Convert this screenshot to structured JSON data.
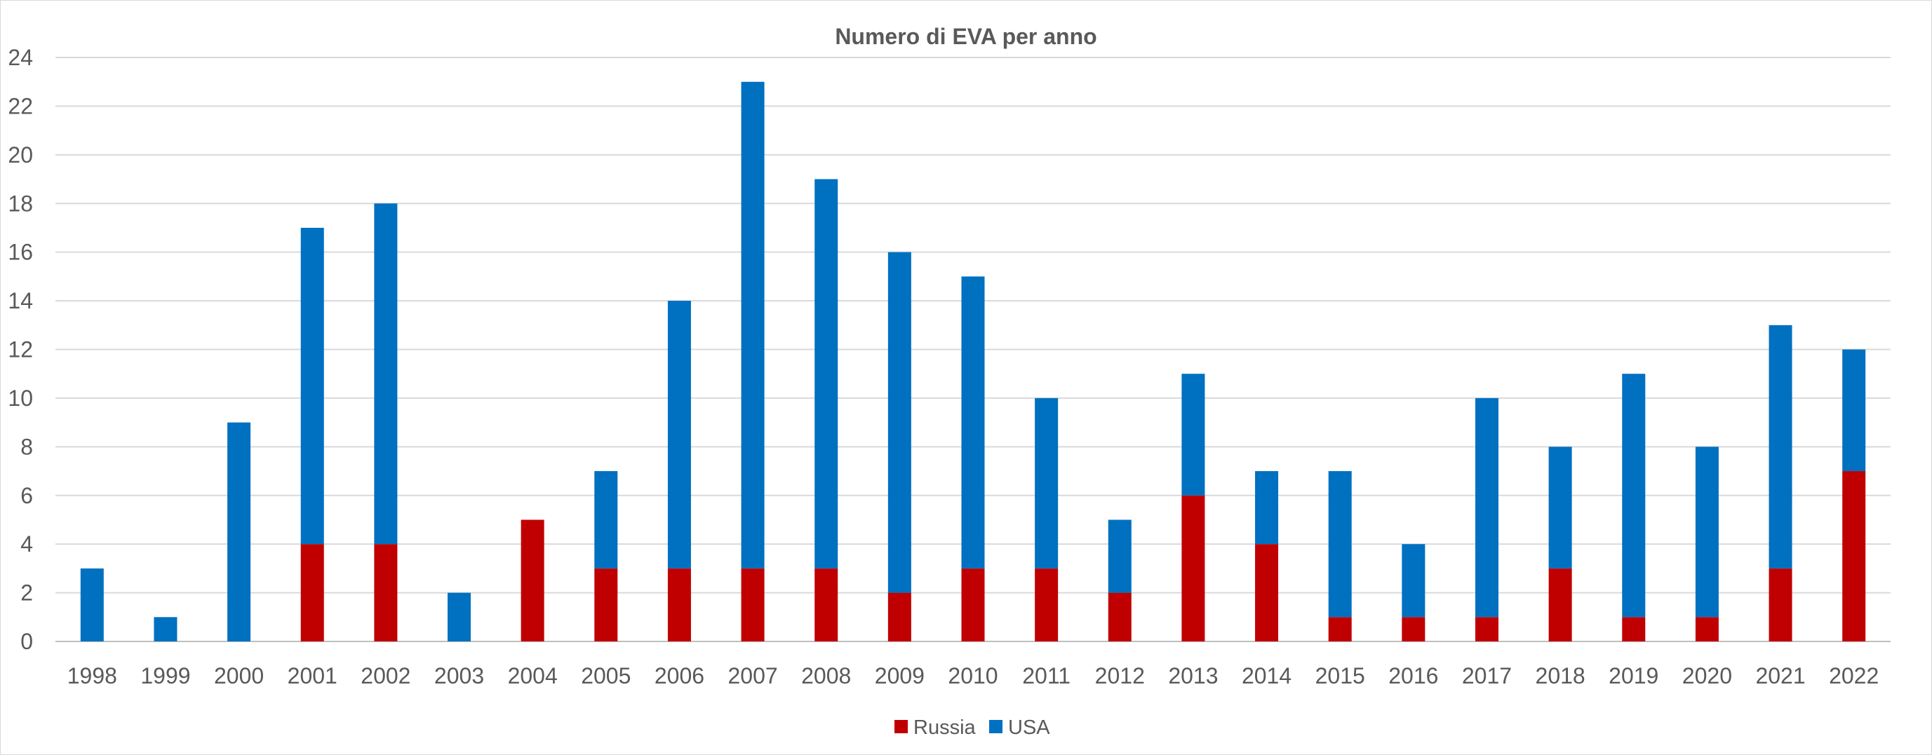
{
  "chart_data": {
    "type": "bar",
    "stacked": true,
    "title": "Numero di EVA per anno",
    "xlabel": "",
    "ylabel": "",
    "categories": [
      "1998",
      "1999",
      "2000",
      "2001",
      "2002",
      "2003",
      "2004",
      "2005",
      "2006",
      "2007",
      "2008",
      "2009",
      "2010",
      "2011",
      "2012",
      "2013",
      "2014",
      "2015",
      "2016",
      "2017",
      "2018",
      "2019",
      "2020",
      "2021",
      "2022"
    ],
    "series": [
      {
        "name": "Russia",
        "color": "#c00000",
        "values": [
          0,
          0,
          0,
          4,
          4,
          0,
          5,
          3,
          3,
          3,
          3,
          2,
          3,
          3,
          2,
          6,
          4,
          1,
          1,
          1,
          3,
          1,
          1,
          3,
          7
        ]
      },
      {
        "name": "USA",
        "color": "#0070c0",
        "values": [
          3,
          1,
          9,
          13,
          14,
          2,
          0,
          4,
          11,
          20,
          16,
          14,
          12,
          7,
          3,
          5,
          3,
          6,
          3,
          9,
          5,
          10,
          7,
          10,
          5
        ]
      }
    ],
    "ylim": [
      0,
      24
    ],
    "yticks": [
      0,
      2,
      4,
      6,
      8,
      10,
      12,
      14,
      16,
      18,
      20,
      22,
      24
    ],
    "grid": true,
    "legend": "bottom"
  }
}
